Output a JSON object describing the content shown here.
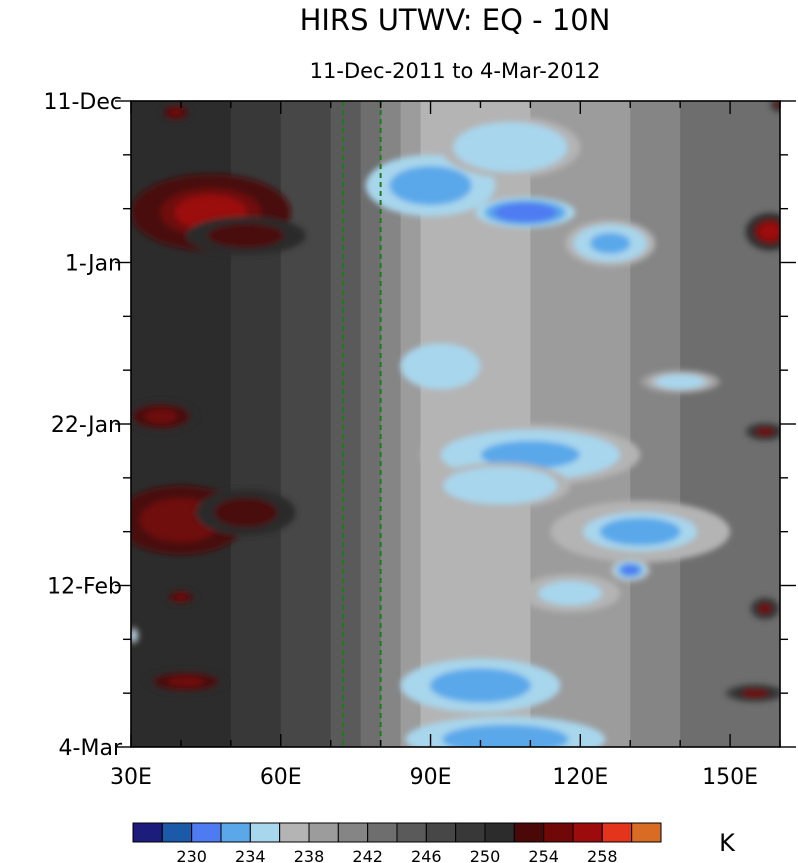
{
  "chart_data": {
    "type": "heatmap",
    "title": "HIRS UTWV: EQ - 10N",
    "subtitle": "11-Dec-2011 to 4-Mar-2012",
    "x_axis": {
      "range": [
        30,
        160
      ],
      "tick_values": [
        30,
        60,
        90,
        120,
        150
      ],
      "tick_labels": [
        "30E",
        "60E",
        "90E",
        "120E",
        "150E"
      ],
      "minor_step": 10
    },
    "y_axis": {
      "range_days": [
        0,
        84
      ],
      "inverted": true,
      "tick_days": [
        0,
        21,
        42,
        63,
        84
      ],
      "tick_labels": [
        "11-Dec",
        "1-Jan",
        "22-Jan",
        "12-Feb",
        "4-Mar"
      ],
      "minor_step_days": 7
    },
    "reference_lines_longitude": [
      72.5,
      80
    ],
    "colorbar": {
      "unit": "K",
      "levels": [
        228,
        230,
        232,
        234,
        236,
        238,
        240,
        242,
        244,
        246,
        248,
        250,
        252,
        254,
        256,
        258
      ],
      "label_values": [
        "230",
        "234",
        "238",
        "242",
        "246",
        "250",
        "254",
        "258"
      ],
      "colors": [
        "#1c1c7c",
        "#1a5aa8",
        "#4f7bf2",
        "#5aa8ea",
        "#a8d6ec",
        "#b4b4b4",
        "#9c9c9c",
        "#858585",
        "#6e6e6e",
        "#5a5a5a",
        "#474747",
        "#383838",
        "#2c2c2c",
        "#4a0808",
        "#700808",
        "#9c0c0c",
        "#e4341c",
        "#d86c24"
      ]
    },
    "features": [
      {
        "lon": 40,
        "day": 15.5,
        "value": 258,
        "rx": 7,
        "ry": 2.5
      },
      {
        "lon": 46,
        "day": 14.5,
        "value": 256,
        "rx": 16,
        "ry": 5
      },
      {
        "lon": 53,
        "day": 17.5,
        "value": 253,
        "rx": 12,
        "ry": 2.5
      },
      {
        "lon": 40,
        "day": 54.5,
        "value": 255,
        "rx": 13,
        "ry": 4.5
      },
      {
        "lon": 53,
        "day": 53.5,
        "value": 253,
        "rx": 10,
        "ry": 3
      },
      {
        "lon": 41,
        "day": 75.5,
        "value": 254,
        "rx": 8,
        "ry": 1.5
      },
      {
        "lon": 36,
        "day": 41,
        "value": 254,
        "rx": 7,
        "ry": 2
      },
      {
        "lon": 39,
        "day": 1.5,
        "value": 254,
        "rx": 3,
        "ry": 1.2
      },
      {
        "lon": 40,
        "day": 64.5,
        "value": 254,
        "rx": 3,
        "ry": 1
      },
      {
        "lon": 158,
        "day": 17,
        "value": 257,
        "rx": 5,
        "ry": 2.5
      },
      {
        "lon": 157,
        "day": 43,
        "value": 254,
        "rx": 4,
        "ry": 1.2
      },
      {
        "lon": 157,
        "day": 66,
        "value": 254,
        "rx": 3,
        "ry": 1.5
      },
      {
        "lon": 155,
        "day": 77,
        "value": 254,
        "rx": 6,
        "ry": 1.2
      },
      {
        "lon": 160,
        "day": 0.5,
        "value": 254,
        "rx": 2,
        "ry": 1
      },
      {
        "lon": 87,
        "day": 11,
        "value": 229,
        "rx": 6,
        "ry": 2
      },
      {
        "lon": 90,
        "day": 11,
        "value": 233,
        "rx": 13,
        "ry": 4
      },
      {
        "lon": 109,
        "day": 14.5,
        "value": 230,
        "rx": 10,
        "ry": 2
      },
      {
        "lon": 106,
        "day": 6,
        "value": 234,
        "rx": 14,
        "ry": 4
      },
      {
        "lon": 126,
        "day": 18.5,
        "value": 233,
        "rx": 9,
        "ry": 3
      },
      {
        "lon": 128,
        "day": 54.5,
        "value": 231,
        "rx": 10,
        "ry": 2
      },
      {
        "lon": 132,
        "day": 56,
        "value": 233,
        "rx": 18,
        "ry": 4
      },
      {
        "lon": 130,
        "day": 61,
        "value": 230,
        "rx": 4,
        "ry": 1.5
      },
      {
        "lon": 110,
        "day": 46,
        "value": 233,
        "rx": 22,
        "ry": 4
      },
      {
        "lon": 104,
        "day": 50,
        "value": 234,
        "rx": 14,
        "ry": 3
      },
      {
        "lon": 92,
        "day": 34.5,
        "value": 234,
        "rx": 8,
        "ry": 3
      },
      {
        "lon": 96,
        "day": 75.5,
        "value": 230,
        "rx": 4,
        "ry": 1.5
      },
      {
        "lon": 100,
        "day": 76,
        "value": 233,
        "rx": 16,
        "ry": 3.5
      },
      {
        "lon": 105,
        "day": 83,
        "value": 233,
        "rx": 20,
        "ry": 3
      },
      {
        "lon": 140,
        "day": 36.5,
        "value": 234,
        "rx": 8,
        "ry": 1.5
      },
      {
        "lon": 118,
        "day": 64,
        "value": 234,
        "rx": 10,
        "ry": 2.5
      },
      {
        "lon": 30.5,
        "day": 69.5,
        "value": 235,
        "rx": 1.2,
        "ry": 1.2
      }
    ]
  }
}
